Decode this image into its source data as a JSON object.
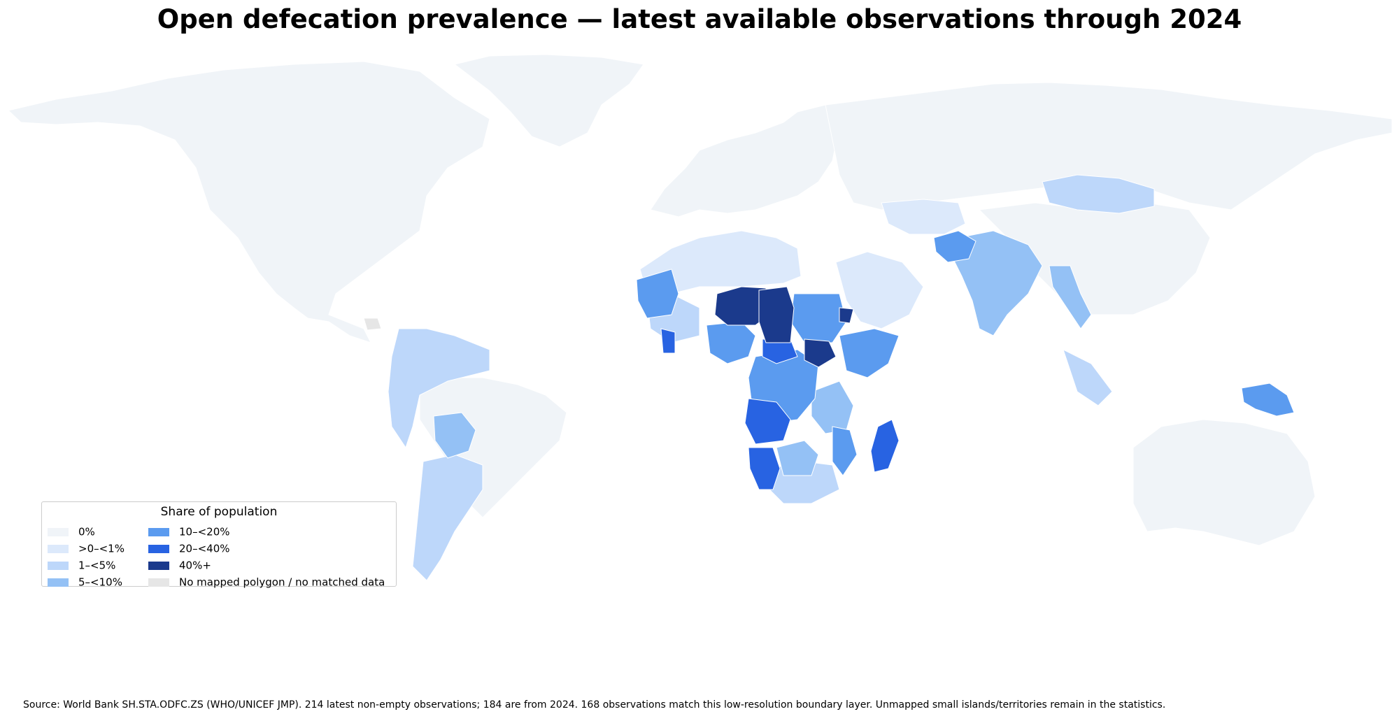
{
  "title": "Open defecation prevalence — latest available observations through 2024",
  "legend": {
    "title": "Share of population",
    "items": [
      {
        "label": "0%",
        "color": "#f0f4f8"
      },
      {
        "label": ">0–<1%",
        "color": "#dce9fb"
      },
      {
        "label": "1–<5%",
        "color": "#bdd7fa"
      },
      {
        "label": "5–<10%",
        "color": "#94c1f5"
      },
      {
        "label": "10–<20%",
        "color": "#5b9bef"
      },
      {
        "label": "20–<40%",
        "color": "#2863e2"
      },
      {
        "label": "40%+",
        "color": "#1b3a8c"
      },
      {
        "label": "No mapped polygon / no matched data",
        "color": "#e6e6e6"
      }
    ]
  },
  "source": "Source: World Bank SH.STA.ODFC.ZS (WHO/UNICEF JMP). 214 latest non-empty observations; 184 are from 2024. 168 observations match this low-resolution boundary layer. Unmapped small islands/territories remain in the statistics.",
  "map_data": {
    "indicator": "SH.STA.ODFC.ZS",
    "projection": "equirectangular",
    "regions": [
      {
        "region": "north-america",
        "bin": "0%"
      },
      {
        "region": "greenland",
        "bin": "0%"
      },
      {
        "region": "europe",
        "bin": "0%"
      },
      {
        "region": "russia",
        "bin": "0%"
      },
      {
        "region": "china",
        "bin": "0%"
      },
      {
        "region": "australia",
        "bin": "0%"
      },
      {
        "region": "brazil",
        "bin": "0%"
      },
      {
        "region": "north-africa",
        "bin": ">0–<1%"
      },
      {
        "region": "arabian-peninsula",
        "bin": ">0–<1%"
      },
      {
        "region": "central-asia",
        "bin": ">0–<1%"
      },
      {
        "region": "mongolia",
        "bin": "1–<5%"
      },
      {
        "region": "andes",
        "bin": "1–<5%"
      },
      {
        "region": "argentina",
        "bin": "1–<5%"
      },
      {
        "region": "bolivia",
        "bin": "5–<10%"
      },
      {
        "region": "south-asia",
        "bin": "5–<10%"
      },
      {
        "region": "afghanistan",
        "bin": "10–<20%"
      },
      {
        "region": "sahel",
        "bin": "40%+"
      },
      {
        "region": "south-sudan",
        "bin": "40%+"
      },
      {
        "region": "angola-namibia",
        "bin": "20–<40%"
      },
      {
        "region": "madagascar",
        "bin": "20–<40%"
      },
      {
        "region": "papua-new-guinea",
        "bin": "10–<20%"
      }
    ]
  }
}
